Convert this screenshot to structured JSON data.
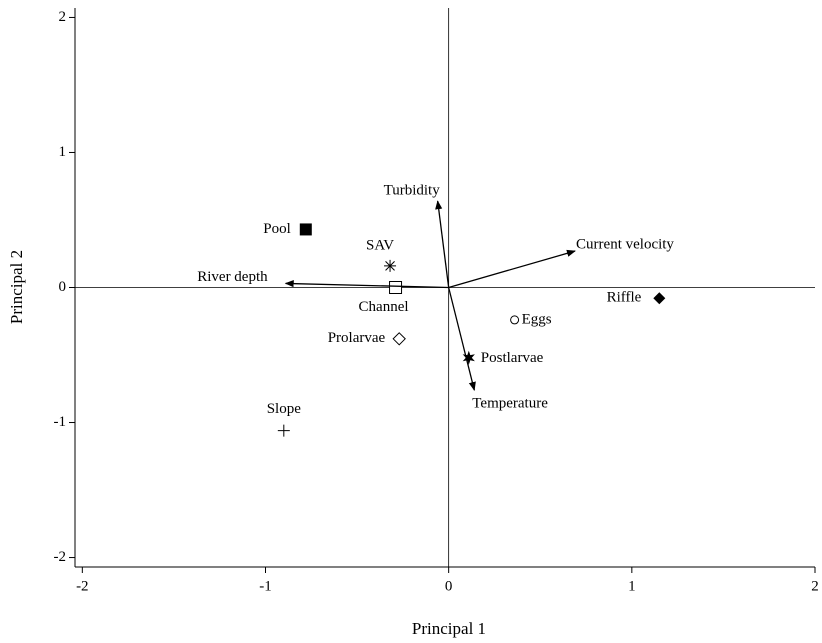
{
  "chart_data": {
    "type": "biplot",
    "x_label": "Principal 1",
    "y_label": "Principal 2",
    "xlim": [
      -2.04,
      2.0
    ],
    "ylim": [
      -2.07,
      2.07
    ],
    "xticks": [
      -2,
      -1,
      0,
      1,
      2
    ],
    "yticks": [
      -2,
      -1,
      0,
      1,
      2
    ],
    "points": [
      {
        "label": "Pool",
        "x": -0.78,
        "y": 0.43,
        "marker": "filled-square"
      },
      {
        "label": "SAV",
        "x": -0.32,
        "y": 0.16,
        "marker": "asterisk"
      },
      {
        "label": "Channel",
        "x": -0.29,
        "y": 0.0,
        "marker": "open-square"
      },
      {
        "label": "Prolarvae",
        "x": -0.27,
        "y": -0.38,
        "marker": "open-diamond"
      },
      {
        "label": "Slope",
        "x": -0.9,
        "y": -1.06,
        "marker": "plus"
      },
      {
        "label": "Eggs",
        "x": 0.36,
        "y": -0.24,
        "marker": "open-circle"
      },
      {
        "label": "Postlarvae",
        "x": 0.11,
        "y": -0.52,
        "marker": "star"
      },
      {
        "label": "Riffle",
        "x": 1.15,
        "y": -0.08,
        "marker": "filled-diamond"
      }
    ],
    "vectors": [
      {
        "label": "Turbidity",
        "x": -0.06,
        "y": 0.64
      },
      {
        "label": "Current velocity",
        "x": 0.69,
        "y": 0.27
      },
      {
        "label": "River depth",
        "x": -0.89,
        "y": 0.03
      },
      {
        "label": "Temperature",
        "x": 0.14,
        "y": -0.76
      }
    ]
  }
}
